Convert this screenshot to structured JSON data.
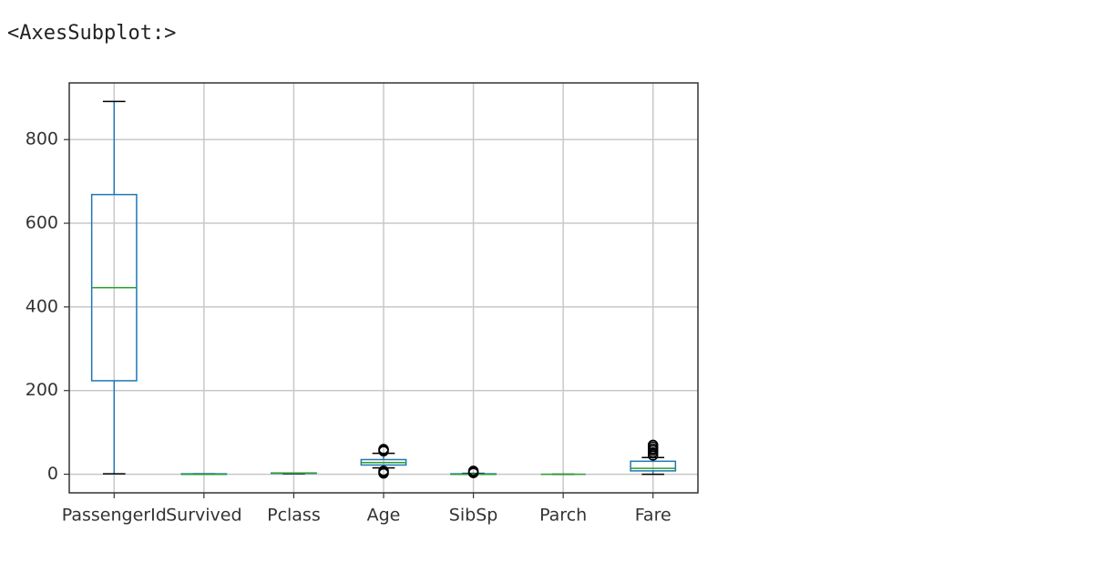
{
  "output_label": "<AxesSubplot:>",
  "chart_data": {
    "type": "box",
    "categories": [
      "PassengerId",
      "Survived",
      "Pclass",
      "Age",
      "SibSp",
      "Parch",
      "Fare"
    ],
    "boxes": [
      {
        "whislo": 1,
        "q1": 223.5,
        "med": 446,
        "q3": 668.5,
        "whishi": 891,
        "fliers": []
      },
      {
        "whislo": 0,
        "q1": 0,
        "med": 0,
        "q3": 1,
        "whishi": 1,
        "fliers": []
      },
      {
        "whislo": 1,
        "q1": 2,
        "med": 3,
        "q3": 3,
        "whishi": 3,
        "fliers": []
      },
      {
        "whislo": 15,
        "q1": 22,
        "med": 28,
        "q3": 35,
        "whishi": 50,
        "fliers": [
          2,
          5,
          8,
          55,
          58,
          60
        ]
      },
      {
        "whislo": 0,
        "q1": 0,
        "med": 0,
        "q3": 1,
        "whishi": 2,
        "fliers": [
          3,
          4,
          5,
          8
        ]
      },
      {
        "whislo": 0,
        "q1": 0,
        "med": 0,
        "q3": 0,
        "whishi": 0,
        "fliers": []
      },
      {
        "whislo": 0,
        "q1": 8,
        "med": 14,
        "q3": 31,
        "whishi": 40,
        "fliers": [
          45,
          52,
          57,
          61,
          66,
          70
        ]
      }
    ],
    "ylim": [
      -44.5,
      935.5
    ],
    "yticks": [
      0,
      200,
      400,
      600,
      800
    ],
    "grid": true,
    "box_color": "#1f77b4",
    "median_color": "#2ca02c",
    "cap_color": "#000000",
    "flier_color": "#000000"
  }
}
